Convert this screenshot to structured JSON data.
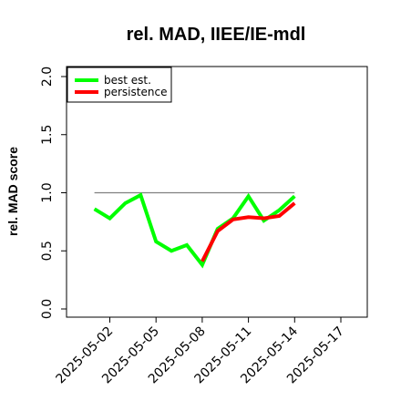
{
  "chart_data": {
    "type": "line",
    "title": "rel. MAD, IIEE/IE-mdl",
    "xlabel": "",
    "ylabel": "rel. MAD score",
    "ylim": [
      0.0,
      2.0
    ],
    "yticks": [
      "0.0",
      "0.5",
      "1.0",
      "1.5",
      "2.0"
    ],
    "xticks": [
      "2025-05-02",
      "2025-05-05",
      "2025-05-08",
      "2025-05-11",
      "2025-05-14",
      "2025-05-17"
    ],
    "reference_line": {
      "value": 1.0,
      "x_start": "2025-05-01",
      "x_end": "2025-05-14",
      "color": "#808080"
    },
    "legend_position": "top-left",
    "grid": false,
    "series": [
      {
        "name": "best est.",
        "color": "#00ff00",
        "x": [
          "2025-05-01",
          "2025-05-02",
          "2025-05-03",
          "2025-05-04",
          "2025-05-05",
          "2025-05-06",
          "2025-05-07",
          "2025-05-08",
          "2025-05-09",
          "2025-05-10",
          "2025-05-11",
          "2025-05-12",
          "2025-05-13",
          "2025-05-14"
        ],
        "values": [
          0.86,
          0.78,
          0.91,
          0.98,
          0.58,
          0.5,
          0.55,
          0.38,
          0.69,
          0.78,
          0.97,
          0.76,
          0.85,
          0.97
        ]
      },
      {
        "name": "persistence",
        "color": "#ff0000",
        "x": [
          "2025-05-08",
          "2025-05-09",
          "2025-05-10",
          "2025-05-11",
          "2025-05-12",
          "2025-05-13",
          "2025-05-14"
        ],
        "values": [
          0.41,
          0.67,
          0.77,
          0.79,
          0.78,
          0.8,
          0.91
        ]
      }
    ]
  }
}
